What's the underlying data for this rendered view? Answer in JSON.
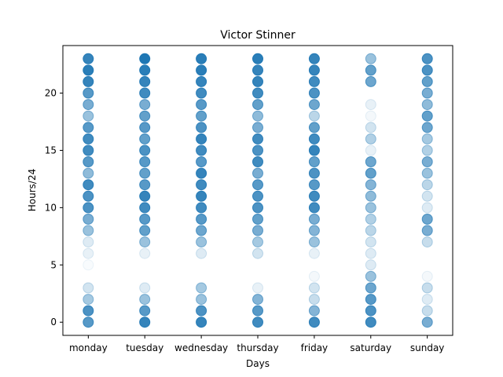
{
  "chart_data": {
    "type": "scatter",
    "title": "Victor Stinner",
    "xlabel": "Days",
    "ylabel": "Hours/24",
    "categories": [
      "monday",
      "tuesday",
      "wednesday",
      "thursday",
      "friday",
      "saturday",
      "sunday"
    ],
    "ylim": [
      -1.15,
      24.15
    ],
    "yticks": [
      0,
      5,
      10,
      15,
      20
    ],
    "marker_color": "#1f77b4",
    "grid": false,
    "legend": "none",
    "points": {
      "monday": [
        [
          0,
          0.75
        ],
        [
          1,
          0.8
        ],
        [
          2,
          0.4
        ],
        [
          3,
          0.2
        ],
        [
          5,
          0.03
        ],
        [
          6,
          0.1
        ],
        [
          7,
          0.15
        ],
        [
          8,
          0.45
        ],
        [
          9,
          0.6
        ],
        [
          10,
          0.8
        ],
        [
          11,
          0.8
        ],
        [
          12,
          0.85
        ],
        [
          13,
          0.5
        ],
        [
          14,
          0.75
        ],
        [
          15,
          0.85
        ],
        [
          16,
          0.85
        ],
        [
          17,
          0.75
        ],
        [
          18,
          0.45
        ],
        [
          19,
          0.6
        ],
        [
          20,
          0.75
        ],
        [
          21,
          0.9
        ],
        [
          22,
          0.95
        ],
        [
          23,
          0.9
        ]
      ],
      "tuesday": [
        [
          0,
          0.9
        ],
        [
          1,
          0.75
        ],
        [
          2,
          0.45
        ],
        [
          3,
          0.15
        ],
        [
          6,
          0.1
        ],
        [
          7,
          0.45
        ],
        [
          8,
          0.7
        ],
        [
          9,
          0.75
        ],
        [
          10,
          0.85
        ],
        [
          11,
          0.9
        ],
        [
          12,
          0.75
        ],
        [
          13,
          0.7
        ],
        [
          14,
          0.75
        ],
        [
          15,
          0.8
        ],
        [
          16,
          0.7
        ],
        [
          17,
          0.75
        ],
        [
          18,
          0.7
        ],
        [
          19,
          0.6
        ],
        [
          20,
          0.85
        ],
        [
          21,
          0.9
        ],
        [
          22,
          0.95
        ],
        [
          23,
          1.0
        ]
      ],
      "wednesday": [
        [
          0,
          0.9
        ],
        [
          1,
          0.8
        ],
        [
          2,
          0.45
        ],
        [
          3,
          0.4
        ],
        [
          6,
          0.15
        ],
        [
          7,
          0.45
        ],
        [
          8,
          0.65
        ],
        [
          9,
          0.75
        ],
        [
          10,
          0.85
        ],
        [
          11,
          0.9
        ],
        [
          12,
          0.85
        ],
        [
          13,
          0.9
        ],
        [
          14,
          0.75
        ],
        [
          15,
          0.85
        ],
        [
          16,
          0.9
        ],
        [
          17,
          0.8
        ],
        [
          18,
          0.7
        ],
        [
          19,
          0.75
        ],
        [
          20,
          0.85
        ],
        [
          21,
          0.9
        ],
        [
          22,
          0.95
        ],
        [
          23,
          0.95
        ]
      ],
      "thursday": [
        [
          0,
          0.85
        ],
        [
          1,
          0.75
        ],
        [
          2,
          0.55
        ],
        [
          3,
          0.1
        ],
        [
          6,
          0.2
        ],
        [
          7,
          0.4
        ],
        [
          8,
          0.6
        ],
        [
          9,
          0.7
        ],
        [
          10,
          0.8
        ],
        [
          11,
          0.8
        ],
        [
          12,
          0.75
        ],
        [
          13,
          0.6
        ],
        [
          14,
          0.85
        ],
        [
          15,
          0.8
        ],
        [
          16,
          0.85
        ],
        [
          17,
          0.6
        ],
        [
          18,
          0.5
        ],
        [
          19,
          0.7
        ],
        [
          20,
          0.85
        ],
        [
          21,
          0.9
        ],
        [
          22,
          0.9
        ],
        [
          23,
          0.95
        ]
      ],
      "friday": [
        [
          0,
          0.85
        ],
        [
          1,
          0.55
        ],
        [
          2,
          0.25
        ],
        [
          3,
          0.2
        ],
        [
          4,
          0.05
        ],
        [
          6,
          0.1
        ],
        [
          7,
          0.45
        ],
        [
          8,
          0.55
        ],
        [
          9,
          0.6
        ],
        [
          10,
          0.85
        ],
        [
          11,
          0.85
        ],
        [
          12,
          0.75
        ],
        [
          13,
          0.8
        ],
        [
          14,
          0.7
        ],
        [
          15,
          0.9
        ],
        [
          16,
          0.85
        ],
        [
          17,
          0.7
        ],
        [
          18,
          0.3
        ],
        [
          19,
          0.65
        ],
        [
          20,
          0.8
        ],
        [
          21,
          0.85
        ],
        [
          22,
          0.9
        ],
        [
          23,
          0.9
        ]
      ],
      "saturday": [
        [
          0,
          0.85
        ],
        [
          1,
          0.8
        ],
        [
          2,
          0.75
        ],
        [
          3,
          0.65
        ],
        [
          4,
          0.45
        ],
        [
          5,
          0.15
        ],
        [
          6,
          0.15
        ],
        [
          7,
          0.2
        ],
        [
          8,
          0.3
        ],
        [
          9,
          0.35
        ],
        [
          10,
          0.45
        ],
        [
          11,
          0.5
        ],
        [
          12,
          0.55
        ],
        [
          13,
          0.7
        ],
        [
          14,
          0.65
        ],
        [
          15,
          0.1
        ],
        [
          16,
          0.35
        ],
        [
          17,
          0.2
        ],
        [
          18,
          0.05
        ],
        [
          19,
          0.1
        ],
        [
          21,
          0.65
        ],
        [
          22,
          0.7
        ],
        [
          23,
          0.45
        ]
      ],
      "sunday": [
        [
          0,
          0.6
        ],
        [
          1,
          0.25
        ],
        [
          2,
          0.15
        ],
        [
          3,
          0.25
        ],
        [
          4,
          0.05
        ],
        [
          7,
          0.25
        ],
        [
          8,
          0.6
        ],
        [
          9,
          0.65
        ],
        [
          10,
          0.15
        ],
        [
          11,
          0.2
        ],
        [
          12,
          0.3
        ],
        [
          13,
          0.45
        ],
        [
          14,
          0.6
        ],
        [
          15,
          0.35
        ],
        [
          16,
          0.4
        ],
        [
          17,
          0.65
        ],
        [
          18,
          0.7
        ],
        [
          19,
          0.5
        ],
        [
          20,
          0.6
        ],
        [
          21,
          0.7
        ],
        [
          22,
          0.8
        ],
        [
          23,
          0.8
        ]
      ]
    }
  }
}
